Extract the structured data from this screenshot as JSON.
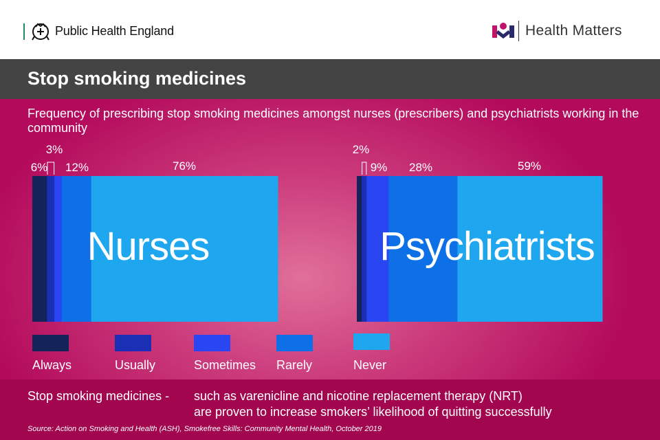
{
  "header": {
    "org_name": "Public Health England",
    "brand_name": "Health Matters",
    "brand_colors": {
      "bar": "#1a8a6a",
      "magenta": "#c0146a",
      "navy": "#2a2a6a"
    }
  },
  "title": "Stop smoking medicines",
  "footer": {
    "label": "Stop smoking medicines -",
    "line1": "such as varenicline and nicotine replacement therapy (NRT)",
    "line2": "are proven to increase smokers’ likelihood of quitting successfully",
    "source": "Source: Action on Smoking and Health (ASH), Smokefree Skills: Community Mental Health, October 2019"
  },
  "chart_data": {
    "type": "bar",
    "stacked": true,
    "orientation": "horizontal",
    "title": "Frequency of prescribing stop smoking medicines amongst nurses (prescribers) and psychiatrists working in the community",
    "legend_position": "bottom",
    "grid": false,
    "series": [
      {
        "name": "Always",
        "color": "#14235a"
      },
      {
        "name": "Usually",
        "color": "#1b2fb4"
      },
      {
        "name": "Sometimes",
        "color": "#2a45f2"
      },
      {
        "name": "Rarely",
        "color": "#0e70e6"
      },
      {
        "name": "Never",
        "color": "#1ea6ef"
      }
    ],
    "groups": [
      {
        "name": "Nurses",
        "values": [
          6,
          3,
          3,
          12,
          76
        ],
        "value_labels": [
          "6%",
          "3%",
          "",
          "12%",
          "76%"
        ]
      },
      {
        "name": "Psychiatrists",
        "values": [
          2,
          2,
          9,
          28,
          59
        ],
        "value_labels": [
          "",
          "2%",
          "9%",
          "28%",
          "59%"
        ]
      }
    ]
  }
}
